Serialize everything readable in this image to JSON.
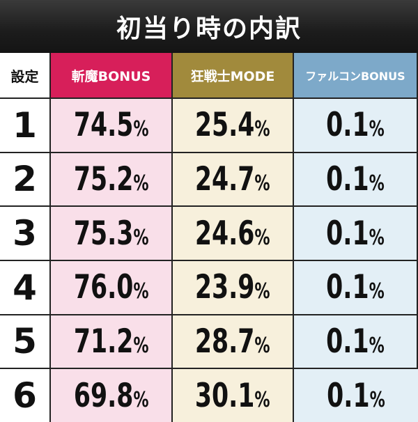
{
  "title": "初当り時の内訳",
  "headers": {
    "setting": "設定",
    "col_a": "斬魔BONUS",
    "col_b": "狂戦士MODE",
    "col_c": "ファルコンBONUS"
  },
  "rows": [
    {
      "setting": "1",
      "a": "74.5",
      "b": "25.4",
      "c": "0.1"
    },
    {
      "setting": "2",
      "a": "75.2",
      "b": "24.7",
      "c": "0.1"
    },
    {
      "setting": "3",
      "a": "75.3",
      "b": "24.6",
      "c": "0.1"
    },
    {
      "setting": "4",
      "a": "76.0",
      "b": "23.9",
      "c": "0.1"
    },
    {
      "setting": "5",
      "a": "71.2",
      "b": "28.7",
      "c": "0.1"
    },
    {
      "setting": "6",
      "a": "69.8",
      "b": "30.1",
      "c": "0.1"
    }
  ],
  "percent_sign": "%",
  "colors": {
    "title_bg": "#1c1c1c",
    "col_a_header": "#d71f5a",
    "col_b_header": "#a18a3c",
    "col_c_header": "#7da9c9",
    "col_a_cell": "#f9dfe9",
    "col_b_cell": "#f7f0dc",
    "col_c_cell": "#e3eff6"
  }
}
